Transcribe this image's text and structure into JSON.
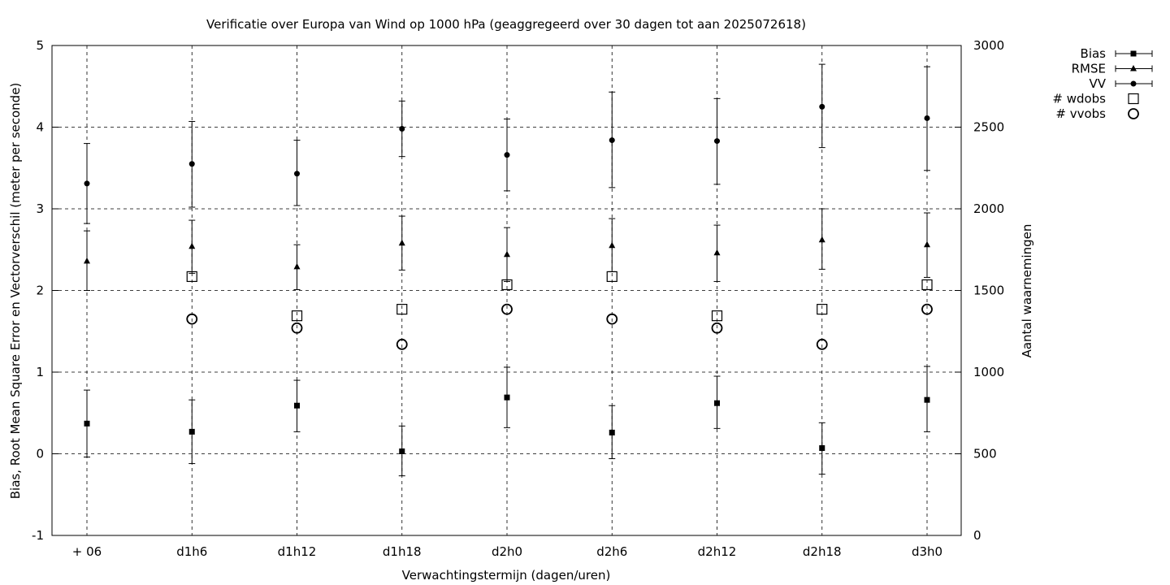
{
  "chart_data": {
    "type": "scatter",
    "title": "Verificatie over Europa van Wind op 1000 hPa (geaggregeerd over 30 dagen tot aan 2025072618)",
    "xlabel": "Verwachtingstermijn (dagen/uren)",
    "ylabel": "Bias, Root Mean Square Error en Vectorverschil (meter per seconde)",
    "y2label": "Aantal waarnemingen",
    "categories": [
      "+ 06",
      "d1h6",
      "d1h12",
      "d1h18",
      "d2h0",
      "d2h6",
      "d2h12",
      "d2h18",
      "d3h0"
    ],
    "ylim": [
      -1,
      5
    ],
    "y2lim": [
      0,
      3000
    ],
    "yticks": [
      "-1",
      "0",
      "1",
      "2",
      "3",
      "4",
      "5"
    ],
    "y2ticks": [
      "0",
      "500",
      "1000",
      "1500",
      "2000",
      "2500",
      "3000"
    ],
    "grid": true,
    "legend_position": "outside-top-right",
    "series": [
      {
        "name": "Bias",
        "marker": "square",
        "axis": "y",
        "values": [
          0.37,
          0.27,
          0.59,
          0.03,
          0.69,
          0.26,
          0.62,
          0.07,
          0.66
        ],
        "err_low": [
          -0.04,
          -0.12,
          0.27,
          -0.27,
          0.32,
          -0.06,
          0.31,
          -0.25,
          0.27
        ],
        "err_high": [
          0.78,
          0.66,
          0.9,
          0.34,
          1.06,
          0.59,
          0.95,
          0.38,
          1.07
        ]
      },
      {
        "name": "RMSE",
        "marker": "triangle",
        "axis": "y",
        "values": [
          2.36,
          2.54,
          2.29,
          2.58,
          2.44,
          2.55,
          2.46,
          2.62,
          2.56
        ],
        "err_low": [
          2.0,
          2.21,
          2.01,
          2.25,
          2.11,
          2.23,
          2.11,
          2.26,
          2.16
        ],
        "err_high": [
          2.73,
          2.86,
          2.56,
          2.91,
          2.77,
          2.88,
          2.8,
          3.0,
          2.95
        ]
      },
      {
        "name": "VV",
        "marker": "circle",
        "axis": "y",
        "values": [
          3.31,
          3.55,
          3.43,
          3.98,
          3.66,
          3.84,
          3.83,
          4.25,
          4.11
        ],
        "err_low": [
          2.82,
          3.02,
          3.04,
          3.64,
          3.22,
          3.26,
          3.3,
          3.75,
          3.47
        ],
        "err_high": [
          3.8,
          4.07,
          3.84,
          4.32,
          4.1,
          4.43,
          4.35,
          4.77,
          4.74
        ]
      },
      {
        "name": "# wdobs",
        "marker": "open-square",
        "axis": "y2",
        "values": [
          null,
          1585,
          1345,
          1385,
          1535,
          1585,
          1345,
          1385,
          1535
        ]
      },
      {
        "name": "# vvobs",
        "marker": "open-circle",
        "axis": "y2",
        "values": [
          null,
          1325,
          1270,
          1170,
          1385,
          1325,
          1270,
          1170,
          1385
        ]
      }
    ]
  }
}
